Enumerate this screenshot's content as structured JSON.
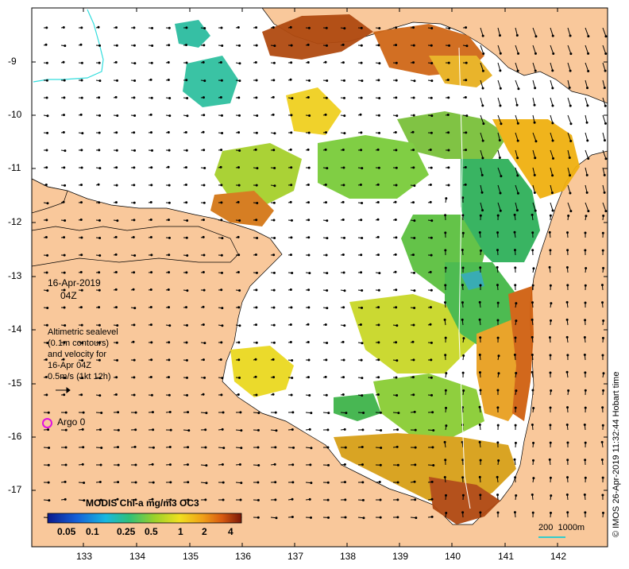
{
  "map": {
    "date_label": "16-Apr-2019",
    "time_label": "04Z",
    "legend_lines": [
      "Altimetric sealevel",
      "(0.1m contours)",
      "and velocity for",
      "16-Apr 04Z",
      "0.5m/s (1kt 12h)"
    ],
    "argo_label": "Argo 0",
    "colorbar_title": "MODIS Chl-a mg/m3 OC3",
    "colorbar_ticks": [
      "0.05",
      "0.1",
      "0.25",
      "0.5",
      "1",
      "2",
      "4"
    ],
    "scale_label": "200  1000m",
    "credit": "© IMOS 26-Apr-2019 11:32:44 Hobart time",
    "x_ticks": [
      "133",
      "134",
      "135",
      "136",
      "137",
      "138",
      "139",
      "140",
      "141",
      "142"
    ],
    "y_ticks": [
      "-9",
      "-10",
      "-11",
      "-12",
      "-13",
      "-14",
      "-15",
      "-16",
      "-17"
    ],
    "colors": {
      "land": "#f9c89b",
      "frame": "#000000",
      "argo": "#e010e0",
      "scale_line": "#33cccc",
      "contour": "#33dddd"
    }
  }
}
